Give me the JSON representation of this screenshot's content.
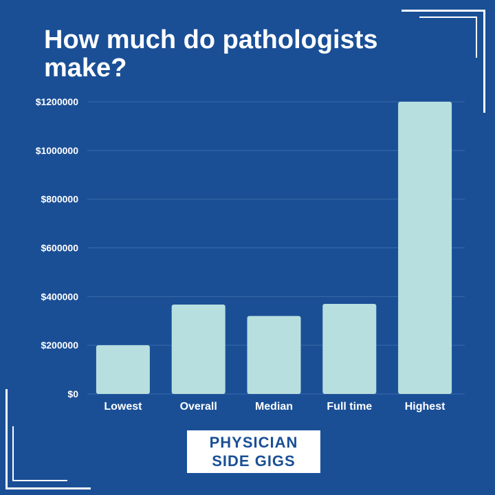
{
  "title": "How much do pathologists make?",
  "brand": {
    "line1": "PHYSICIAN",
    "line2": "SIDE GIGS"
  },
  "colors": {
    "background": "#1a4f96",
    "bar": "#b8dfdf",
    "text": "#ffffff",
    "grid": "#3a6aa8"
  },
  "chart_data": {
    "type": "bar",
    "title": "How much do pathologists make?",
    "categories": [
      "Lowest",
      "Overall",
      "Median",
      "Full time",
      "Highest"
    ],
    "values": [
      200000,
      367000,
      320000,
      370000,
      1200000
    ],
    "y_ticks": [
      0,
      200000,
      400000,
      600000,
      800000,
      1000000,
      1200000
    ],
    "y_tick_labels": [
      "$0",
      "$200000",
      "$400000",
      "$600000",
      "$800000",
      "$1000000",
      "$1200000"
    ],
    "ylim": [
      0,
      1200000
    ],
    "xlabel": "",
    "ylabel": "",
    "grid": true,
    "legend": "none"
  }
}
